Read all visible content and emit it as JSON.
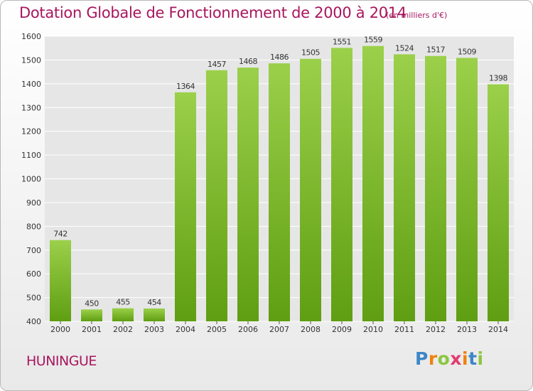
{
  "header": {
    "title": "Dotation Globale de Fonctionnement de 2000 à 2014",
    "unit": "(en milliers d'€)"
  },
  "footer": {
    "city": "HUNINGUE",
    "logo": {
      "letters": [
        "P",
        "r",
        "o",
        "x",
        "i",
        "t",
        "i"
      ],
      "colors": [
        "#3d86c8",
        "#f0820f",
        "#8cc63f",
        "#e23b6e",
        "#f0820f",
        "#3d86c8",
        "#8cc63f"
      ]
    }
  },
  "chart_data": {
    "type": "bar",
    "title": "Dotation Globale de Fonctionnement de 2000 à 2014",
    "ylabel": "",
    "xlabel": "",
    "categories": [
      "2000",
      "2001",
      "2002",
      "2003",
      "2004",
      "2005",
      "2006",
      "2007",
      "2008",
      "2009",
      "2010",
      "2011",
      "2012",
      "2013",
      "2014"
    ],
    "values": [
      742,
      450,
      455,
      454,
      1364,
      1457,
      1468,
      1486,
      1505,
      1551,
      1559,
      1524,
      1517,
      1509,
      1398
    ],
    "data_labels": [
      "742",
      "450",
      "455",
      "454",
      "1364",
      "1457",
      "1468",
      "1486",
      "1505",
      "1551",
      "1559",
      "1524",
      "1517",
      "1509",
      "1398"
    ],
    "ylim": [
      400,
      1600
    ],
    "yticks": [
      400,
      500,
      600,
      700,
      800,
      900,
      1000,
      1100,
      1200,
      1300,
      1400,
      1500,
      1600
    ],
    "ytick_labels": [
      "400",
      "500",
      "600",
      "700",
      "800",
      "900",
      "1000",
      "1100",
      "1200",
      "1300",
      "1400",
      "1500",
      "1600"
    ],
    "grid": true,
    "legend": "none",
    "colors": {
      "bar_light": "#9bd04a",
      "bar_dark": "#5f9e12",
      "grid": "#ffffff",
      "text": "#333333"
    }
  }
}
